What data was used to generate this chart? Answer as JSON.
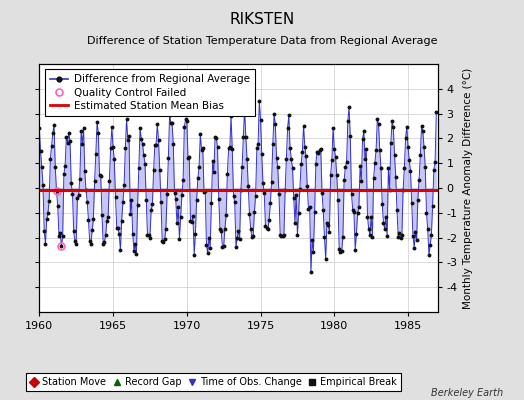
{
  "title": "RIKSTEN",
  "subtitle": "Difference of Station Temperature Data from Regional Average",
  "ylabel": "Monthly Temperature Anomaly Difference (°C)",
  "xlim": [
    1960,
    1987
  ],
  "ylim": [
    -5,
    5
  ],
  "xticks": [
    1960,
    1965,
    1970,
    1975,
    1980,
    1985
  ],
  "yticks": [
    -4,
    -3,
    -2,
    -1,
    0,
    1,
    2,
    3,
    4
  ],
  "ytick_labels": [
    "-4",
    "-3",
    "-2",
    "-1",
    "0",
    "1",
    "2",
    "3",
    "4"
  ],
  "bias_value": -0.1,
  "start_year": 1960,
  "end_year": 1986,
  "background_color": "#e0e0e0",
  "plot_background": "#ffffff",
  "line_color": "#3333cc",
  "fill_color": "#9999ee",
  "bias_color": "#dd0000",
  "dot_color": "#111111",
  "qc_fail_color": "#ff66bb",
  "grid_color": "#cccccc",
  "watermark": "Berkeley Earth",
  "title_fontsize": 11,
  "subtitle_fontsize": 8,
  "axis_fontsize": 8,
  "legend_fontsize": 7.5,
  "qc_indices": [
    14,
    18
  ],
  "seed": 42
}
